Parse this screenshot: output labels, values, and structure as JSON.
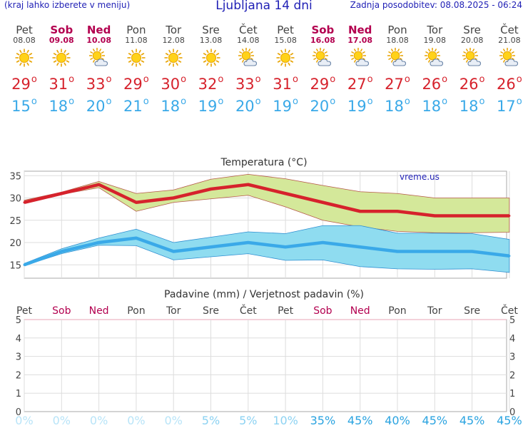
{
  "header": {
    "left_note": "(kraj lahko izberete v meniju)",
    "title": "Ljubljana 14 dni",
    "updated": "Zadnja posodobitev: 08.08.2025 - 06:24"
  },
  "days": [
    {
      "name": "Pet",
      "date": "08.08",
      "weekend": false,
      "icon": "sun-icon",
      "max": "29",
      "min": "15"
    },
    {
      "name": "Sob",
      "date": "09.08",
      "weekend": true,
      "icon": "sun-icon",
      "max": "31",
      "min": "18"
    },
    {
      "name": "Ned",
      "date": "10.08",
      "weekend": true,
      "icon": "sun-cloud-icon",
      "max": "33",
      "min": "20"
    },
    {
      "name": "Pon",
      "date": "11.08",
      "weekend": false,
      "icon": "sun-icon",
      "max": "29",
      "min": "21"
    },
    {
      "name": "Tor",
      "date": "12.08",
      "weekend": false,
      "icon": "sun-icon",
      "max": "30",
      "min": "18"
    },
    {
      "name": "Sre",
      "date": "13.08",
      "weekend": false,
      "icon": "sun-icon",
      "max": "32",
      "min": "19"
    },
    {
      "name": "Čet",
      "date": "14.08",
      "weekend": false,
      "icon": "sun-cloud-icon",
      "max": "33",
      "min": "20"
    },
    {
      "name": "Pet",
      "date": "15.08",
      "weekend": false,
      "icon": "sun-icon",
      "max": "31",
      "min": "19"
    },
    {
      "name": "Sob",
      "date": "16.08",
      "weekend": true,
      "icon": "sun-cloud-icon",
      "max": "29",
      "min": "20"
    },
    {
      "name": "Ned",
      "date": "17.08",
      "weekend": true,
      "icon": "sun-cloud-icon",
      "max": "27",
      "min": "19"
    },
    {
      "name": "Pon",
      "date": "18.08",
      "weekend": false,
      "icon": "sun-cloud-icon",
      "max": "27",
      "min": "18"
    },
    {
      "name": "Tor",
      "date": "19.08",
      "weekend": false,
      "icon": "sun-cloud-icon",
      "max": "26",
      "min": "18"
    },
    {
      "name": "Sre",
      "date": "20.08",
      "weekend": false,
      "icon": "sun-cloud-icon",
      "max": "26",
      "min": "18"
    },
    {
      "name": "Čet",
      "date": "21.08",
      "weekend": false,
      "icon": "sun-cloud-icon",
      "max": "26",
      "min": "17"
    }
  ],
  "colors": {
    "max_line": "#d6222c",
    "min_line": "#3aa9e8",
    "max_band": "#d4e89a",
    "min_band": "#8fdcf0",
    "weekend": "#b3004f",
    "title": "#1f1fb5"
  },
  "chart_data": [
    {
      "type": "line",
      "title": "Temperatura (°C)",
      "watermark": "vreme.us",
      "ylim": [
        12,
        36
      ],
      "yticks": [
        15,
        20,
        25,
        30,
        35
      ],
      "grid": true,
      "categories": [
        "08.08",
        "09.08",
        "10.08",
        "11.08",
        "12.08",
        "13.08",
        "14.08",
        "15.08",
        "16.08",
        "17.08",
        "18.08",
        "19.08",
        "20.08",
        "21.08"
      ],
      "series": [
        {
          "name": "max",
          "values": [
            29,
            31,
            33,
            29,
            30,
            32,
            33,
            31,
            29,
            27,
            27,
            26,
            26,
            26
          ]
        },
        {
          "name": "min",
          "values": [
            15,
            18,
            20,
            21,
            18,
            19,
            20,
            19,
            20,
            19,
            18,
            18,
            18,
            17
          ]
        }
      ],
      "bands": [
        {
          "series": "max",
          "upper": [
            29.5,
            31.3,
            33.7,
            31,
            31.8,
            34.2,
            35.3,
            34.3,
            32.8,
            31.4,
            31,
            30,
            30,
            30
          ],
          "lower": [
            28.8,
            30.8,
            32.3,
            27,
            29,
            29.8,
            30.6,
            28,
            25,
            23.5,
            22.5,
            22.2,
            22.2,
            22.3
          ]
        },
        {
          "series": "min",
          "upper": [
            15.3,
            18.6,
            21,
            23,
            20,
            21.2,
            22.4,
            22,
            23.8,
            23.8,
            22.1,
            22.1,
            22,
            20.7
          ]
        },
        {
          "series": "min",
          "lower": [
            14.8,
            17.5,
            19.4,
            19.3,
            16.1,
            16.8,
            17.5,
            16,
            16.1,
            14.6,
            14.1,
            14,
            14.1,
            13.3
          ]
        }
      ]
    },
    {
      "type": "bar",
      "title": "Padavine (mm) / Verjetnost padavin (%)",
      "ylim": [
        0,
        5
      ],
      "yticks": [
        0,
        1,
        2,
        3,
        4,
        5
      ],
      "grid": true,
      "categories": [
        "Pet",
        "Sob",
        "Ned",
        "Pon",
        "Tor",
        "Sre",
        "Čet",
        "Pet",
        "Sob",
        "Ned",
        "Pon",
        "Tor",
        "Sre",
        "Čet"
      ],
      "values": [
        0,
        0,
        0,
        0,
        0,
        0,
        0,
        0,
        0,
        0,
        0,
        0,
        0,
        0
      ],
      "probabilities": [
        "0%",
        "0%",
        "0%",
        "0%",
        "0%",
        "5%",
        "5%",
        "10%",
        "35%",
        "45%",
        "40%",
        "45%",
        "45%",
        "45%"
      ]
    }
  ]
}
